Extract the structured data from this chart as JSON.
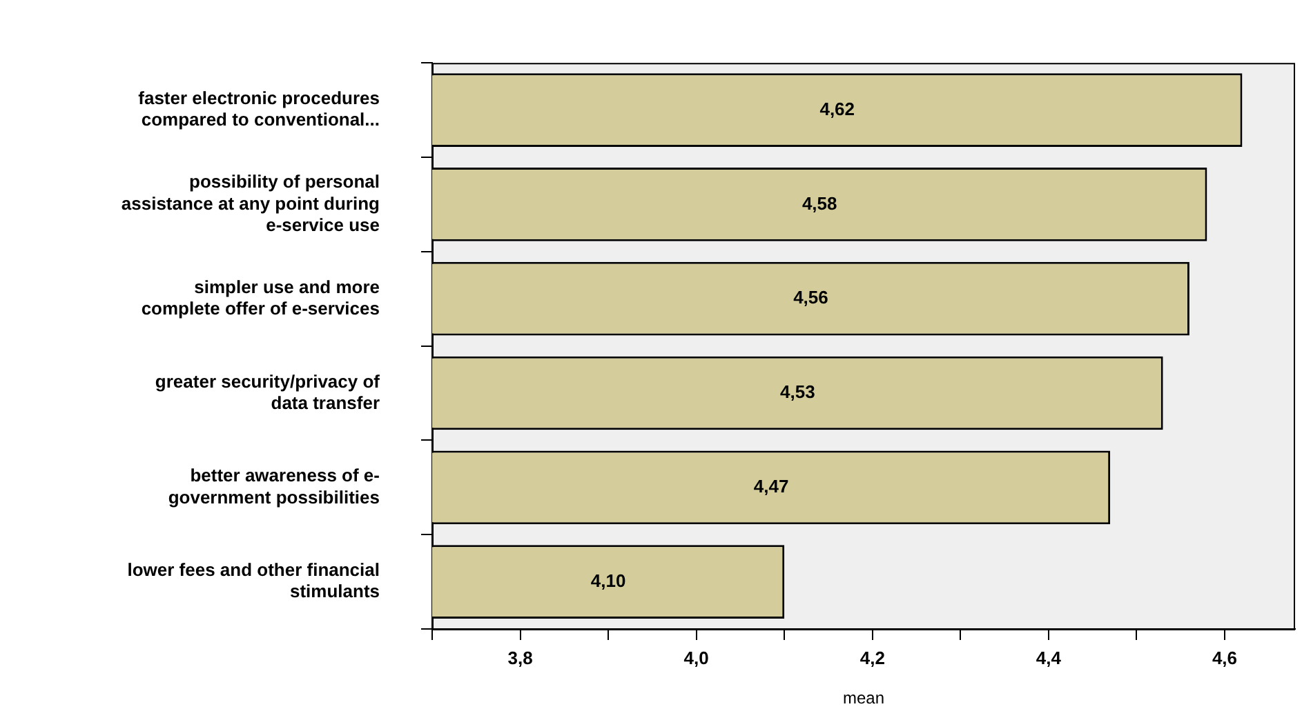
{
  "chart_data": {
    "type": "bar",
    "orientation": "horizontal",
    "xlabel": "mean",
    "categories": [
      "faster electronic procedures\ncompared to conventional...",
      "possibility of personal\nassistance at any point during\ne-service use",
      "simpler use and more\ncomplete offer of e-services",
      "greater security/privacy of\ndata transfer",
      "better awareness of e-\ngovernment possibilities",
      "lower fees and other financial\nstimulants"
    ],
    "values": [
      4.62,
      4.58,
      4.56,
      4.53,
      4.47,
      4.1
    ],
    "color": "#d4cd9b",
    "xlim": [
      3.7,
      4.68
    ],
    "xticks": [
      {
        "value": 3.7,
        "label": null
      },
      {
        "value": 3.8,
        "label": "3,8"
      },
      {
        "value": 3.9,
        "label": null
      },
      {
        "value": 4.0,
        "label": "4,0"
      },
      {
        "value": 4.1,
        "label": null
      },
      {
        "value": 4.2,
        "label": "4,2"
      },
      {
        "value": 4.3,
        "label": null
      },
      {
        "value": 4.4,
        "label": "4,4"
      },
      {
        "value": 4.5,
        "label": null
      },
      {
        "value": 4.6,
        "label": "4,6"
      }
    ],
    "value_labels": [
      "4,62",
      "4,58",
      "4,56",
      "4,53",
      "4,47",
      "4,10"
    ],
    "grid": false,
    "legend": false
  }
}
